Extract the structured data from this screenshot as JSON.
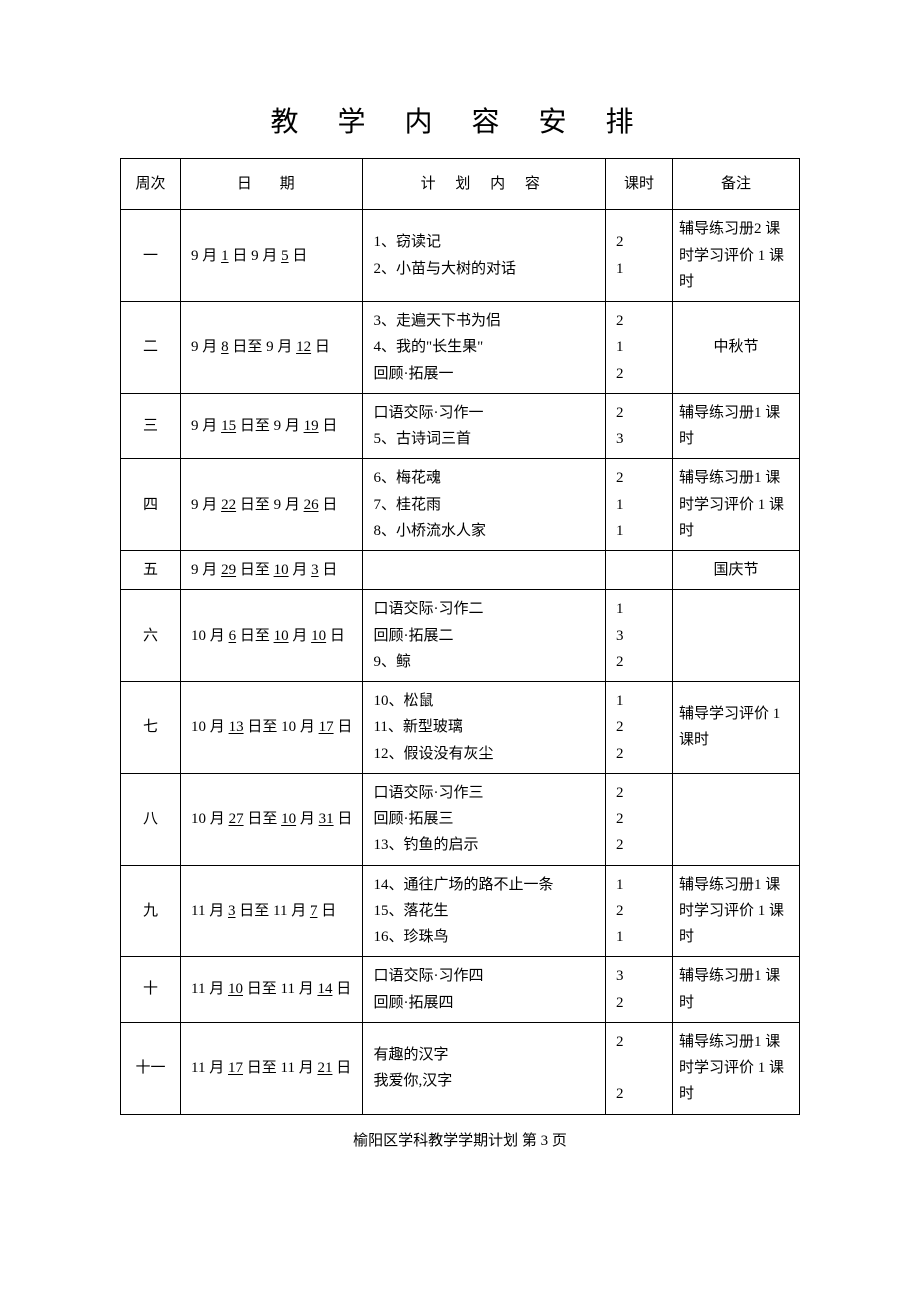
{
  "title": "教 学 内 容 安 排",
  "headers": {
    "week": "周次",
    "date": "日  期",
    "plan": "计 划 内 容",
    "hours": "课时",
    "remark": "备注"
  },
  "rows": [
    {
      "week": "一",
      "date_html": "9 月 <span class='u'>1</span> 日 9 月 <span class='u'>5</span> 日",
      "plan": [
        "1、窃读记",
        "2、小苗与大树的对话"
      ],
      "hours": [
        "2",
        "1"
      ],
      "remark": "辅导练习册2 课时学习评价 1 课时",
      "remark_align": "left"
    },
    {
      "week": "二",
      "date_html": "9 月 <span class='u'>8</span> 日至 9 月 <span class='u'>12</span> 日",
      "plan": [
        "3、走遍天下书为侣",
        "4、我的\"长生果\"",
        "回顾·拓展一"
      ],
      "hours": [
        "2",
        "1",
        "2"
      ],
      "remark": "中秋节",
      "remark_align": "center"
    },
    {
      "week": "三",
      "date_html": "9 月 <span class='u'>15</span> 日至 9 月 <span class='u'>19</span> 日",
      "plan": [
        "口语交际·习作一",
        "5、古诗词三首"
      ],
      "hours": [
        "2",
        "3"
      ],
      "remark": "辅导练习册1 课时",
      "remark_align": "left"
    },
    {
      "week": "四",
      "date_html": "9 月 <span class='u'>22</span> 日至 9 月 <span class='u'>26</span> 日",
      "plan": [
        "6、梅花魂",
        "7、桂花雨",
        "8、小桥流水人家"
      ],
      "hours": [
        "2",
        "1",
        "1"
      ],
      "remark": "辅导练习册1 课时学习评价 1 课时",
      "remark_align": "left"
    },
    {
      "week": "五",
      "date_html": "9 月 <span class='u'>29</span> 日至 <span class='u'>10</span> 月 <span class='u'>3</span> 日",
      "plan": [],
      "hours": [],
      "remark": "国庆节",
      "remark_align": "center"
    },
    {
      "week": "六",
      "date_html": "10 月 <span class='u'>6</span> 日至 <span class='u'>10</span> 月 <span class='u'>10</span> 日",
      "plan": [
        "口语交际·习作二",
        "回顾·拓展二",
        "9、鲸"
      ],
      "hours": [
        "1",
        "3",
        "2"
      ],
      "remark": "",
      "remark_align": "center"
    },
    {
      "week": "七",
      "date_html": "10 月 <span class='u'>13</span> 日至 10 月 <span class='u'>17</span> 日",
      "plan": [
        "10、松鼠",
        "11、新型玻璃",
        "12、假设没有灰尘"
      ],
      "hours": [
        "1",
        "2",
        "2"
      ],
      "remark": "辅导学习评价 1 课时",
      "remark_align": "left"
    },
    {
      "week": "八",
      "date_html": "10 月 <span class='u'>27</span> 日至 <span class='u'>10</span> 月 <span class='u'>31</span> 日",
      "plan": [
        "口语交际·习作三",
        "回顾·拓展三",
        "13、钓鱼的启示"
      ],
      "hours": [
        "2",
        "2",
        "2"
      ],
      "remark": "",
      "remark_align": "center"
    },
    {
      "week": "九",
      "date_html": "11 月 <span class='u'>3</span> 日至 11 月 <span class='u'>7</span> 日",
      "plan": [
        "14、通往广场的路不止一条",
        "15、落花生",
        "16、珍珠鸟"
      ],
      "hours": [
        "1",
        "2",
        "1"
      ],
      "remark": "辅导练习册1 课时学习评价 1 课时",
      "remark_align": "left"
    },
    {
      "week": "十",
      "date_html": "11 月 <span class='u'>10</span> 日至 11 月 <span class='u'>14</span> 日",
      "plan": [
        "口语交际·习作四",
        "回顾·拓展四"
      ],
      "hours": [
        "3",
        "2"
      ],
      "remark": "辅导练习册1 课时",
      "remark_align": "left"
    },
    {
      "week": "十一",
      "date_html": "11 月 <span class='u'>17</span> 日至 11 月 <span class='u'>21</span> 日",
      "plan": [
        "有趣的汉字",
        "我爱你,汉字"
      ],
      "hours": [
        "2",
        "",
        "2"
      ],
      "remark": "辅导练习册1 课时学习评价 1 课时",
      "remark_align": "left"
    }
  ],
  "footer": "榆阳区学科教学学期计划    第 3 页"
}
